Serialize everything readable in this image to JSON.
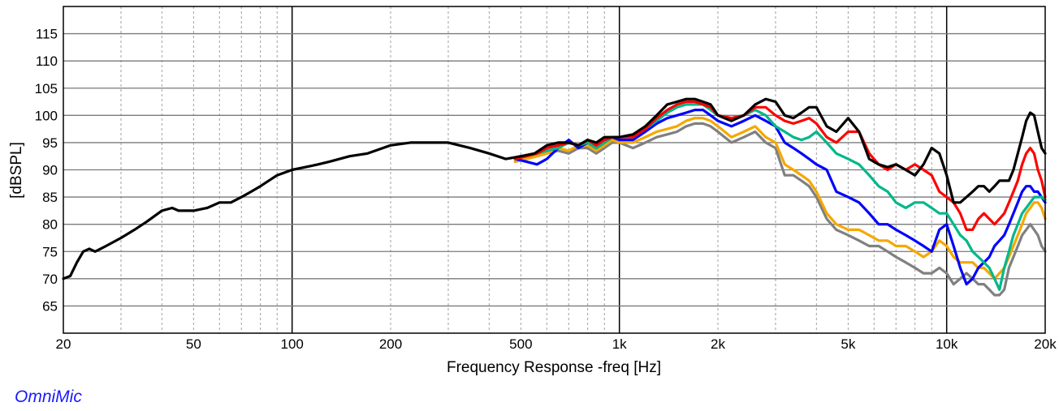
{
  "chart_data": {
    "type": "line",
    "title": "",
    "xlabel": "Frequency Response -freq [Hz]",
    "ylabel": "[dBSPL]",
    "xscale": "log",
    "xlim": [
      20,
      20000
    ],
    "ylim": [
      60,
      120
    ],
    "grid": true,
    "legend": "none",
    "x_ticks": [
      {
        "value": 20,
        "label": "20"
      },
      {
        "value": 50,
        "label": "50"
      },
      {
        "value": 100,
        "label": "100"
      },
      {
        "value": 200,
        "label": "200"
      },
      {
        "value": 500,
        "label": "500"
      },
      {
        "value": 1000,
        "label": "1k"
      },
      {
        "value": 2000,
        "label": "2k"
      },
      {
        "value": 5000,
        "label": "5k"
      },
      {
        "value": 10000,
        "label": "10k"
      },
      {
        "value": 20000,
        "label": "20k"
      }
    ],
    "y_ticks": [
      65,
      70,
      75,
      80,
      85,
      90,
      95,
      100,
      105,
      110,
      115
    ],
    "series": [
      {
        "color": "#808080",
        "x": [
          480,
          520,
          560,
          600,
          650,
          700,
          750,
          800,
          850,
          900,
          950,
          1000,
          1100,
          1200,
          1300,
          1400,
          1500,
          1600,
          1700,
          1800,
          1900,
          2000,
          2200,
          2400,
          2600,
          2800,
          3000,
          3200,
          3400,
          3600,
          3800,
          4000,
          4300,
          4600,
          5000,
          5400,
          5800,
          6200,
          6600,
          7000,
          7500,
          8000,
          8500,
          9000,
          9500,
          10000,
          10500,
          11000,
          11500,
          12000,
          12500,
          13000,
          13500,
          14000,
          14500,
          15000,
          15500,
          16000,
          16500,
          17000,
          17500,
          18000,
          18500,
          19000,
          19500,
          20000
        ],
        "y": [
          91.5,
          92,
          92.5,
          93,
          93.5,
          93,
          94,
          94,
          93,
          94,
          95,
          95,
          94,
          95,
          96,
          96.5,
          97,
          98,
          98.5,
          98.5,
          98,
          97,
          95,
          96,
          97,
          95,
          94,
          89,
          89,
          88,
          87,
          85,
          81,
          79,
          78,
          77,
          76,
          76,
          75,
          74,
          73,
          72,
          71,
          71,
          72,
          71,
          69,
          70,
          71,
          70,
          69,
          69,
          68,
          67,
          67,
          68,
          72,
          74,
          76,
          78,
          79,
          80,
          79,
          78,
          76,
          75
        ]
      },
      {
        "color": "#f5a800",
        "x": [
          480,
          520,
          560,
          600,
          650,
          700,
          750,
          800,
          850,
          900,
          950,
          1000,
          1100,
          1200,
          1300,
          1400,
          1500,
          1600,
          1700,
          1800,
          1900,
          2000,
          2200,
          2400,
          2600,
          2800,
          3000,
          3200,
          3400,
          3600,
          3800,
          4000,
          4300,
          4600,
          5000,
          5400,
          5800,
          6200,
          6600,
          7000,
          7500,
          8000,
          8500,
          9000,
          9500,
          10000,
          10500,
          11000,
          11500,
          12000,
          12500,
          13000,
          13500,
          14000,
          14500,
          15000,
          15500,
          16000,
          16500,
          17000,
          17500,
          18000,
          18500,
          19000,
          19500,
          20000
        ],
        "y": [
          91.5,
          92,
          92.5,
          93,
          94,
          93.5,
          94.5,
          94.5,
          93.5,
          94.5,
          95.5,
          95,
          95,
          96,
          97,
          97.5,
          98,
          99,
          99.5,
          99.5,
          99,
          98,
          96,
          97,
          98,
          96,
          95,
          91,
          90,
          89,
          88,
          86,
          82,
          80,
          79,
          79,
          78,
          77,
          77,
          76,
          76,
          75,
          74,
          75,
          77,
          76,
          74,
          73,
          73,
          73,
          72,
          72,
          71,
          70,
          71,
          72,
          74,
          76,
          78,
          80,
          82,
          83,
          84,
          84,
          83,
          81
        ]
      },
      {
        "color": "#0000ff",
        "x": [
          480,
          520,
          560,
          600,
          650,
          700,
          750,
          800,
          850,
          900,
          950,
          1000,
          1100,
          1200,
          1300,
          1400,
          1500,
          1600,
          1700,
          1800,
          1900,
          2000,
          2200,
          2400,
          2600,
          2800,
          3000,
          3200,
          3400,
          3600,
          3800,
          4000,
          4300,
          4600,
          5000,
          5400,
          5800,
          6200,
          6600,
          7000,
          7500,
          8000,
          8500,
          9000,
          9500,
          10000,
          10500,
          11000,
          11500,
          12000,
          12500,
          13000,
          13500,
          14000,
          14500,
          15000,
          15500,
          16000,
          16500,
          17000,
          17500,
          18000,
          18500,
          19000,
          19500,
          20000
        ],
        "y": [
          92,
          91.5,
          91,
          92,
          94,
          95.5,
          94,
          95,
          94,
          95,
          96,
          95.5,
          95.5,
          97,
          98.5,
          99.5,
          100,
          100.5,
          101,
          101,
          100,
          99,
          98,
          99,
          100,
          99,
          98,
          95,
          94,
          93,
          92,
          91,
          90,
          86,
          85,
          84,
          82,
          80,
          80,
          79,
          78,
          77,
          76,
          75,
          79,
          80,
          76,
          72,
          69,
          70,
          72,
          73,
          74,
          76,
          77,
          78,
          80,
          82,
          84,
          86,
          87,
          87,
          86,
          86,
          85,
          84
        ]
      },
      {
        "color": "#00b78a",
        "x": [
          480,
          520,
          560,
          600,
          650,
          700,
          750,
          800,
          850,
          900,
          950,
          1000,
          1100,
          1200,
          1300,
          1400,
          1500,
          1600,
          1700,
          1800,
          1900,
          2000,
          2200,
          2400,
          2600,
          2800,
          3000,
          3200,
          3400,
          3600,
          3800,
          4000,
          4300,
          4600,
          5000,
          5400,
          5800,
          6200,
          6600,
          7000,
          7500,
          8000,
          8500,
          9000,
          9500,
          10000,
          10500,
          11000,
          11500,
          12000,
          12500,
          13000,
          13500,
          14000,
          14500,
          15000,
          15500,
          16000,
          16500,
          17000,
          17500,
          18000,
          18500,
          19000,
          19500,
          20000
        ],
        "y": [
          92,
          92.5,
          93,
          93.5,
          94,
          95,
          94.5,
          95,
          94,
          95,
          96,
          96,
          96,
          97.5,
          99,
          100.5,
          101.5,
          102,
          102,
          102,
          101,
          100,
          99.5,
          100,
          101,
          100,
          98,
          97,
          96,
          95.5,
          96,
          97,
          95,
          93,
          92,
          91,
          89,
          87,
          86,
          84,
          83,
          84,
          84,
          83,
          82,
          82,
          80,
          78,
          77,
          75,
          74,
          73,
          72,
          70,
          68,
          72,
          75,
          78,
          80,
          82,
          83,
          84,
          85,
          85,
          85,
          84.5
        ]
      },
      {
        "color": "#ff0000",
        "x": [
          480,
          520,
          560,
          600,
          650,
          700,
          750,
          800,
          850,
          900,
          950,
          1000,
          1100,
          1200,
          1300,
          1400,
          1500,
          1600,
          1700,
          1800,
          1900,
          2000,
          2200,
          2400,
          2600,
          2800,
          3000,
          3200,
          3400,
          3600,
          3800,
          4000,
          4300,
          4600,
          5000,
          5400,
          5800,
          6200,
          6600,
          7000,
          7500,
          8000,
          8500,
          9000,
          9500,
          10000,
          10500,
          11000,
          11500,
          12000,
          12500,
          13000,
          13500,
          14000,
          14500,
          15000,
          15500,
          16000,
          16500,
          17000,
          17500,
          18000,
          18500,
          19000,
          19500,
          20000
        ],
        "y": [
          92,
          92.5,
          93,
          94,
          94.5,
          95,
          94.5,
          95.5,
          94.5,
          95.5,
          96,
          96,
          96,
          97.5,
          99.5,
          101,
          102,
          102.5,
          102.5,
          102,
          101.5,
          100,
          99.5,
          100,
          101.5,
          101.5,
          100,
          99,
          98.5,
          99,
          99.5,
          98.5,
          96,
          95,
          97,
          97,
          93,
          91,
          90,
          91,
          90,
          91,
          90,
          89,
          86,
          85,
          84,
          82,
          79,
          79,
          81,
          82,
          81,
          80,
          81,
          82,
          84,
          86,
          88,
          91,
          93,
          94,
          93,
          90,
          88,
          85
        ]
      },
      {
        "color": "#000000",
        "x": [
          20,
          21,
          22,
          23,
          24,
          25,
          27,
          30,
          33,
          36,
          40,
          43,
          45,
          48,
          50,
          55,
          60,
          65,
          70,
          75,
          80,
          90,
          100,
          110,
          120,
          130,
          150,
          170,
          200,
          230,
          260,
          300,
          350,
          400,
          450,
          500,
          550,
          600,
          650,
          700,
          750,
          800,
          850,
          900,
          950,
          1000,
          1100,
          1200,
          1300,
          1400,
          1500,
          1600,
          1700,
          1800,
          1900,
          2000,
          2200,
          2400,
          2600,
          2800,
          3000,
          3200,
          3400,
          3600,
          3800,
          4000,
          4300,
          4600,
          5000,
          5400,
          5800,
          6200,
          6600,
          7000,
          7500,
          8000,
          8500,
          9000,
          9500,
          10000,
          10500,
          11000,
          11500,
          12000,
          12500,
          13000,
          13500,
          14000,
          14500,
          15000,
          15500,
          16000,
          16500,
          17000,
          17500,
          18000,
          18500,
          19000,
          19500,
          20000
        ],
        "y": [
          70,
          70.5,
          73,
          75,
          75.5,
          75,
          76,
          77.5,
          79,
          80.5,
          82.5,
          83,
          82.5,
          82.5,
          82.5,
          83,
          84,
          84,
          85,
          86,
          87,
          89,
          90,
          90.5,
          91,
          91.5,
          92.5,
          93,
          94.5,
          95,
          95,
          95,
          94,
          93,
          92,
          92.5,
          93,
          94.5,
          95,
          95,
          94.5,
          95.5,
          95,
          96,
          96,
          96,
          96.5,
          98,
          100,
          102,
          102.5,
          103,
          103,
          102.5,
          102,
          100,
          99,
          100,
          102,
          103,
          102.5,
          100,
          99.5,
          100.5,
          101.5,
          101.5,
          98,
          97,
          99.5,
          97,
          92,
          91,
          90.5,
          91,
          90,
          89,
          91,
          94,
          93,
          89,
          84,
          84,
          85,
          86,
          87,
          87,
          86,
          87,
          88,
          88,
          88,
          90,
          93,
          96,
          99,
          100.5,
          100,
          97,
          94,
          93
        ]
      }
    ]
  },
  "brand": "OmniMic"
}
